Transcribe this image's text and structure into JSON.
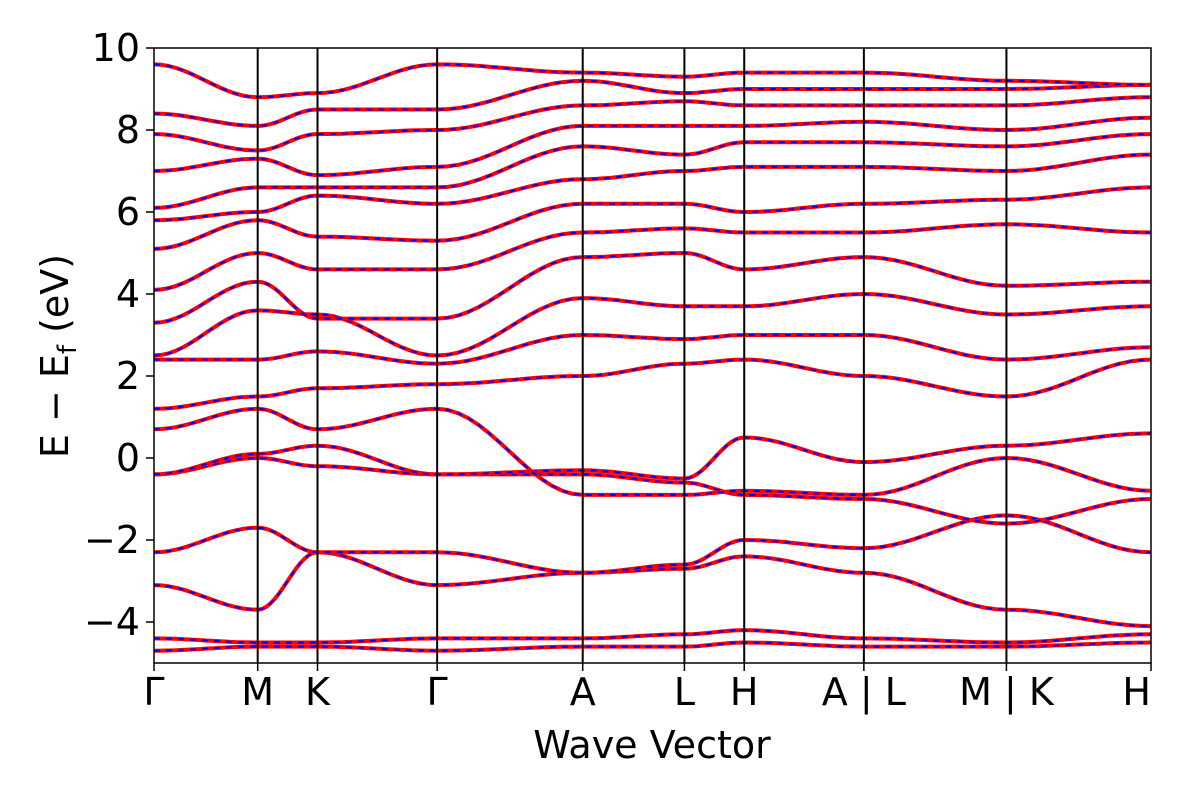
{
  "chart_data": {
    "type": "line",
    "xlabel": "Wave Vector",
    "ylabel": "E − E",
    "ylabel_subscript": "f",
    "ylabel_unit": "(eV)",
    "ylim": [
      -5,
      10
    ],
    "yticks": [
      {
        "value": 10,
        "label": "10"
      },
      {
        "value": 8,
        "label": "8"
      },
      {
        "value": 6,
        "label": "6"
      },
      {
        "value": 4,
        "label": "4"
      },
      {
        "value": 2,
        "label": "2"
      },
      {
        "value": 0,
        "label": "0"
      },
      {
        "value": -2,
        "label": "−2"
      },
      {
        "value": -4,
        "label": "−4"
      }
    ],
    "kpath_labels": [
      "Γ",
      "M",
      "K",
      "Γ",
      "A",
      "L",
      "H",
      "A | L",
      "M | K",
      "H"
    ],
    "kpath_positions": [
      0.0,
      0.104,
      0.164,
      0.284,
      0.43,
      0.532,
      0.592,
      0.712,
      0.855,
      1.0
    ],
    "grid": false,
    "legend": "none",
    "colors": {
      "band_primary": "#ff0000",
      "band_secondary": "#0000ff",
      "kline": "#000000"
    },
    "band_style": "red solid curves overlaid with blue dashed curves (two nearly identical band structures)",
    "series": [
      {
        "values": [
          -4.7,
          -4.6,
          -4.6,
          -4.7,
          -4.6,
          -4.6,
          -4.5,
          -4.6,
          -4.6,
          -4.5
        ]
      },
      {
        "values": [
          -4.4,
          -4.5,
          -4.5,
          -4.4,
          -4.4,
          -4.3,
          -4.2,
          -4.4,
          -4.5,
          -4.3
        ]
      },
      {
        "values": [
          -3.1,
          -3.7,
          -2.3,
          -3.1,
          -2.8,
          -2.7,
          -2.4,
          -2.8,
          -3.7,
          -4.1
        ]
      },
      {
        "values": [
          -2.3,
          -1.7,
          -2.3,
          -2.3,
          -2.8,
          -2.6,
          -2.0,
          -2.2,
          -1.4,
          -2.3
        ]
      },
      {
        "values": [
          -0.4,
          0.0,
          -0.2,
          -0.4,
          -0.4,
          -0.6,
          -0.9,
          -1.0,
          -1.6,
          -1.0
        ]
      },
      {
        "values": [
          -0.4,
          0.1,
          0.3,
          -0.4,
          -0.3,
          -0.5,
          0.5,
          -0.1,
          0.3,
          0.6
        ]
      },
      {
        "values": [
          0.7,
          1.2,
          0.7,
          1.2,
          -0.9,
          -0.9,
          -0.8,
          -0.9,
          0.0,
          -0.8
        ]
      },
      {
        "values": [
          1.2,
          1.5,
          1.7,
          1.8,
          2.0,
          2.3,
          2.4,
          2.0,
          1.5,
          2.4
        ]
      },
      {
        "values": [
          2.4,
          2.4,
          2.6,
          2.3,
          3.0,
          2.9,
          3.0,
          3.0,
          2.4,
          2.7
        ]
      },
      {
        "values": [
          2.5,
          3.6,
          3.5,
          2.5,
          3.9,
          3.7,
          3.7,
          4.0,
          3.5,
          3.7
        ]
      },
      {
        "values": [
          3.3,
          4.3,
          3.4,
          3.4,
          4.9,
          5.0,
          4.6,
          4.9,
          4.2,
          4.3
        ]
      },
      {
        "values": [
          4.1,
          5.0,
          4.6,
          4.6,
          5.5,
          5.6,
          5.5,
          5.5,
          5.7,
          5.5
        ]
      },
      {
        "values": [
          5.1,
          5.8,
          5.4,
          5.3,
          6.2,
          6.2,
          6.0,
          6.2,
          6.3,
          6.6
        ]
      },
      {
        "values": [
          5.8,
          6.0,
          6.4,
          6.2,
          6.8,
          7.0,
          7.1,
          7.1,
          7.0,
          7.4
        ]
      },
      {
        "values": [
          6.1,
          6.6,
          6.6,
          6.6,
          7.6,
          7.4,
          7.7,
          7.7,
          7.6,
          7.9
        ]
      },
      {
        "values": [
          7.0,
          7.3,
          6.9,
          7.1,
          8.1,
          8.1,
          8.1,
          8.2,
          8.0,
          8.3
        ]
      },
      {
        "values": [
          7.9,
          7.5,
          7.9,
          8.0,
          8.6,
          8.7,
          8.6,
          8.6,
          8.6,
          8.8
        ]
      },
      {
        "values": [
          8.4,
          8.1,
          8.5,
          8.5,
          9.2,
          8.9,
          9.0,
          9.0,
          9.0,
          9.1
        ]
      },
      {
        "values": [
          9.6,
          8.8,
          8.9,
          9.6,
          9.4,
          9.3,
          9.4,
          9.4,
          9.2,
          9.1
        ]
      }
    ]
  }
}
